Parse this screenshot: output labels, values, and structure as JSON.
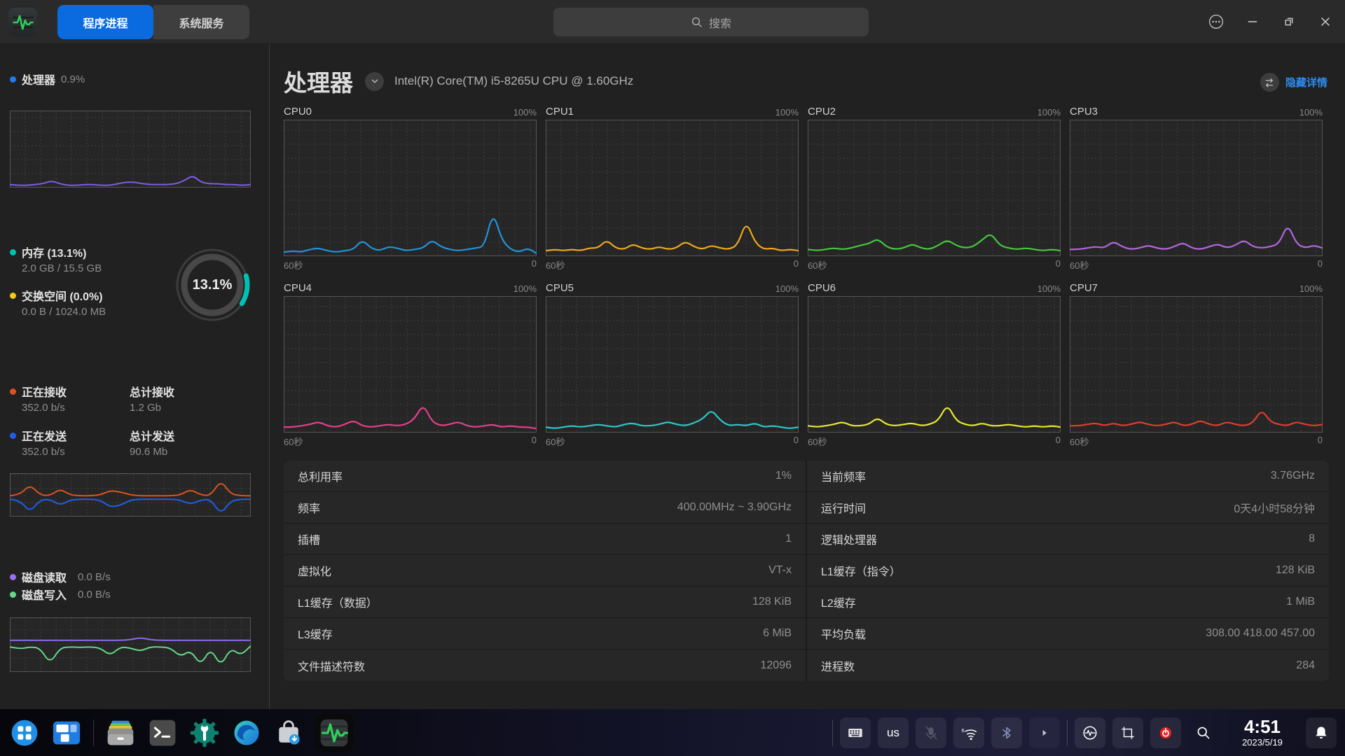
{
  "window": {
    "tabs": [
      {
        "label": "程序进程"
      },
      {
        "label": "系统服务"
      }
    ],
    "search_placeholder": "搜索"
  },
  "colors": {
    "accent": "#0a6be0",
    "link": "#2b8cf0"
  },
  "sidebar": {
    "cpu": {
      "label": "处理器",
      "value": "0.9%"
    },
    "cpu_series": {
      "color": "#7d5ce6",
      "points": [
        4,
        3,
        3,
        4,
        5,
        9,
        5,
        3,
        3,
        4,
        4,
        3,
        3,
        5,
        7,
        7,
        5,
        4,
        4,
        4,
        5,
        9,
        16,
        7,
        5,
        5,
        4,
        4,
        3,
        4
      ]
    },
    "memory": {
      "label": "内存 (13.1%)",
      "detail": "2.0 GB / 15.5 GB"
    },
    "swap": {
      "label": "交换空间 (0.0%)",
      "detail": "0.0 B / 1024.0 MB"
    },
    "ring": {
      "label": "13.1%",
      "percent": 13.1,
      "color": "#00c0b4",
      "track": "#3d3d3d"
    },
    "net": {
      "recv_label": "正在接收",
      "recv_rate": "352.0 b/s",
      "recv_total_label": "总计接收",
      "recv_total": "1.2 Gb",
      "send_label": "正在发送",
      "send_rate": "352.0 b/s",
      "send_total_label": "总计发送",
      "send_total": "90.6 Mb"
    },
    "net_recv_series": {
      "color": "#d9541e",
      "points": [
        48,
        50,
        74,
        50,
        48,
        64,
        50,
        48,
        48,
        50,
        60,
        57,
        50,
        48,
        48,
        48,
        48,
        50,
        63,
        50,
        48,
        84,
        52,
        48,
        48
      ]
    },
    "net_send_series": {
      "color": "#1f5fe8",
      "points": [
        40,
        38,
        10,
        38,
        40,
        26,
        38,
        40,
        40,
        38,
        22,
        26,
        38,
        40,
        40,
        40,
        40,
        38,
        28,
        38,
        40,
        5,
        36,
        40,
        40
      ]
    },
    "disk": {
      "read_label": "磁盘读取",
      "read_rate": "0.0 B/s",
      "write_label": "磁盘写入",
      "write_rate": "0.0 B/s"
    },
    "disk_read_series": {
      "color": "#8a6cf0",
      "points": [
        58,
        58,
        58,
        58,
        58,
        58,
        58,
        58,
        58,
        58,
        58,
        58,
        59,
        63,
        59,
        58,
        58,
        58,
        58,
        58,
        58,
        58,
        58,
        58,
        58
      ]
    },
    "disk_write_series": {
      "color": "#66d688",
      "points": [
        46,
        42,
        46,
        44,
        15,
        44,
        46,
        45,
        46,
        44,
        30,
        46,
        44,
        38,
        46,
        46,
        44,
        28,
        40,
        12,
        44,
        10,
        44,
        30,
        48
      ]
    },
    "bullets": {
      "cpu": "#1f7ce8",
      "memory": "#00c0b4",
      "swap": "#f5c918",
      "recv": "#d9541e",
      "send": "#1f5fe8",
      "read": "#9570f0",
      "write": "#66d688"
    }
  },
  "main": {
    "title": "处理器",
    "cpu_model": "Intel(R) Core(TM) i5-8265U CPU @ 1.60GHz",
    "details_toggle": "隐藏详情",
    "axis": {
      "top": "100%",
      "left": "60秒",
      "right": "0"
    },
    "cpus": [
      {
        "name": "CPU0",
        "color": "#2094dc",
        "points": [
          3,
          4,
          3,
          5,
          6,
          4,
          3,
          4,
          5,
          12,
          6,
          4,
          7,
          6,
          4,
          5,
          6,
          12,
          7,
          5,
          4,
          5,
          6,
          7,
          33,
          12,
          5,
          3,
          6,
          2
        ]
      },
      {
        "name": "CPU1",
        "color": "#f0a71c",
        "points": [
          4,
          5,
          4,
          5,
          4,
          6,
          6,
          12,
          6,
          5,
          9,
          6,
          5,
          7,
          5,
          6,
          11,
          7,
          5,
          8,
          6,
          5,
          8,
          26,
          10,
          5,
          6,
          4,
          5,
          4
        ]
      },
      {
        "name": "CPU2",
        "color": "#46c83c",
        "points": [
          5,
          4,
          5,
          6,
          5,
          6,
          8,
          9,
          13,
          7,
          5,
          6,
          9,
          6,
          5,
          8,
          12,
          8,
          6,
          7,
          12,
          17,
          8,
          6,
          5,
          6,
          5,
          4,
          5,
          4
        ]
      },
      {
        "name": "CPU3",
        "color": "#b465e0",
        "points": [
          5,
          5,
          6,
          7,
          6,
          11,
          7,
          5,
          6,
          8,
          6,
          5,
          7,
          10,
          6,
          5,
          7,
          9,
          6,
          8,
          12,
          7,
          6,
          7,
          9,
          24,
          9,
          6,
          8,
          6
        ]
      },
      {
        "name": "CPU4",
        "color": "#e83e8c",
        "points": [
          4,
          4,
          5,
          6,
          8,
          5,
          4,
          6,
          9,
          5,
          4,
          5,
          6,
          5,
          6,
          10,
          21,
          8,
          5,
          6,
          8,
          5,
          4,
          5,
          6,
          4,
          5,
          4,
          4,
          3
        ]
      },
      {
        "name": "CPU5",
        "color": "#2cc8c8",
        "points": [
          4,
          3,
          4,
          5,
          4,
          5,
          6,
          5,
          4,
          6,
          7,
          5,
          5,
          6,
          8,
          6,
          5,
          7,
          10,
          17,
          9,
          5,
          6,
          5,
          7,
          4,
          5,
          4,
          3,
          4
        ]
      },
      {
        "name": "CPU6",
        "color": "#e6e832",
        "points": [
          5,
          4,
          5,
          6,
          8,
          5,
          5,
          6,
          11,
          6,
          5,
          6,
          7,
          5,
          6,
          9,
          21,
          9,
          6,
          5,
          7,
          5,
          5,
          6,
          5,
          4,
          5,
          4,
          5,
          4
        ]
      },
      {
        "name": "CPU7",
        "color": "#e03c30",
        "points": [
          5,
          5,
          6,
          7,
          5,
          7,
          5,
          6,
          8,
          6,
          5,
          6,
          8,
          5,
          6,
          9,
          6,
          5,
          8,
          6,
          5,
          7,
          17,
          8,
          6,
          5,
          8,
          6,
          5,
          6
        ]
      }
    ],
    "info_left": [
      {
        "label": "总利用率",
        "value": "1%"
      },
      {
        "label": "频率",
        "value": "400.00MHz ~ 3.90GHz"
      },
      {
        "label": "插槽",
        "value": "1"
      },
      {
        "label": "虚拟化",
        "value": "VT-x"
      },
      {
        "label": "L1缓存（数据）",
        "value": "128 KiB"
      },
      {
        "label": "L3缓存",
        "value": "6 MiB"
      },
      {
        "label": "文件描述符数",
        "value": "12096"
      }
    ],
    "info_right": [
      {
        "label": "当前频率",
        "value": "3.76GHz"
      },
      {
        "label": "运行时间",
        "value": "0天4小时58分钟"
      },
      {
        "label": "逻辑处理器",
        "value": "8"
      },
      {
        "label": "L1缓存（指令）",
        "value": "128 KiB"
      },
      {
        "label": "L2缓存",
        "value": "1 MiB"
      },
      {
        "label": "平均负载",
        "value": "308.00 418.00 457.00"
      },
      {
        "label": "进程数",
        "value": "284"
      }
    ]
  },
  "taskbar": {
    "keyboard_layout": "us",
    "time": "4:51",
    "date": "2023/5/19"
  }
}
